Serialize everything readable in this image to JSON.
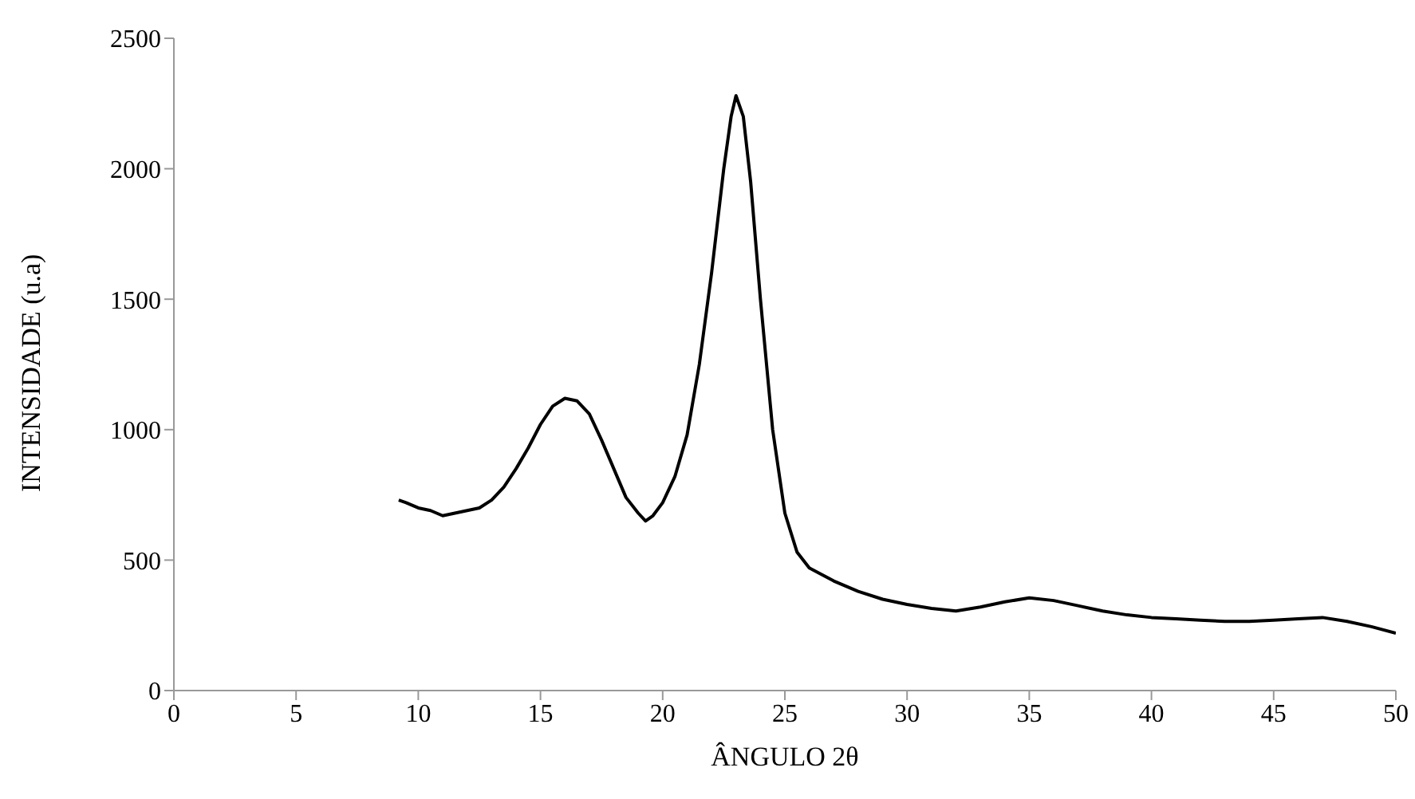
{
  "chart_data": {
    "type": "line",
    "xlabel": "ÂNGULO 2θ",
    "ylabel": "INTENSIDADE (u.a)",
    "xlim": [
      0,
      50
    ],
    "xticks": [
      0,
      5,
      10,
      15,
      20,
      25,
      30,
      35,
      40,
      45,
      50
    ],
    "ylim": [
      0,
      2500
    ],
    "yticks": [
      0,
      500,
      1000,
      1500,
      2000,
      2500
    ],
    "grid": false,
    "legend": false,
    "marker": "none",
    "line_style": "solid",
    "x": [
      9.2,
      9.5,
      10,
      10.5,
      11,
      11.5,
      12,
      12.5,
      13,
      13.5,
      14,
      14.5,
      15,
      15.5,
      16,
      16.5,
      17,
      17.5,
      18,
      18.5,
      19,
      19.3,
      19.6,
      20,
      20.5,
      21,
      21.5,
      22,
      22.5,
      22.8,
      23,
      23.3,
      23.6,
      24,
      24.5,
      25,
      25.5,
      26,
      27,
      28,
      29,
      30,
      31,
      32,
      33,
      34,
      35,
      36,
      37,
      38,
      39,
      40,
      41,
      42,
      43,
      44,
      45,
      46,
      47,
      48,
      49,
      50
    ],
    "series": [
      {
        "color": "#000000",
        "values": [
          730,
          720,
          700,
          690,
          670,
          680,
          690,
          700,
          730,
          780,
          850,
          930,
          1020,
          1090,
          1120,
          1110,
          1060,
          960,
          850,
          740,
          680,
          650,
          670,
          720,
          820,
          980,
          1250,
          1600,
          2000,
          2200,
          2280,
          2200,
          1950,
          1500,
          1000,
          680,
          530,
          470,
          420,
          380,
          350,
          330,
          315,
          305,
          320,
          340,
          355,
          345,
          325,
          305,
          290,
          280,
          275,
          270,
          265,
          265,
          270,
          275,
          280,
          265,
          245,
          220
        ]
      }
    ]
  }
}
